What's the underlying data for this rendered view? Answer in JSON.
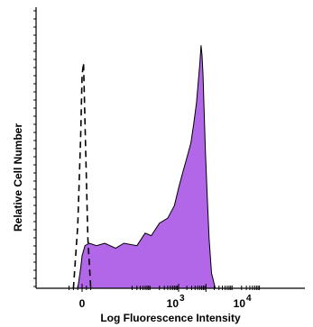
{
  "chart_data": {
    "type": "area",
    "title": "",
    "xlabel": "Log Fluorescence Intensity",
    "ylabel": "Relative Cell Number",
    "x_scale": "biexponential-log",
    "xlim": [
      -1,
      10000000
    ],
    "ylim": [
      0,
      1
    ],
    "x_tick_labels": [
      {
        "value": 0,
        "base": "0",
        "exp": ""
      },
      {
        "value": 1000,
        "base": "10",
        "exp": "3"
      },
      {
        "value": 10000,
        "base": "10",
        "exp": "4"
      }
    ],
    "grid": false,
    "legend": "none",
    "series": [
      {
        "style": "dashed-outline",
        "color": "#000000",
        "x": [
          -0.6,
          -0.3,
          -0.1,
          0,
          0.1,
          0.25,
          0.4,
          0.6
        ],
        "y": [
          0.0,
          0.25,
          0.6,
          0.85,
          0.9,
          0.55,
          0.2,
          0.0
        ]
      },
      {
        "style": "filled",
        "color": "#b266e8",
        "x": [
          -0.3,
          -0.1,
          0,
          0.2,
          0.5,
          1,
          2,
          5,
          10,
          30,
          60,
          100,
          200,
          400,
          700,
          1000,
          1400,
          2000,
          2800,
          3600,
          4500,
          5200,
          6000,
          6600,
          7200,
          7800,
          8500,
          9500,
          11000,
          13000,
          16000,
          22000
        ],
        "y": [
          0.0,
          0.08,
          0.13,
          0.17,
          0.18,
          0.17,
          0.18,
          0.16,
          0.18,
          0.17,
          0.22,
          0.21,
          0.26,
          0.28,
          0.33,
          0.4,
          0.46,
          0.52,
          0.58,
          0.66,
          0.74,
          0.82,
          0.9,
          0.97,
          0.93,
          0.85,
          0.72,
          0.55,
          0.38,
          0.2,
          0.06,
          0.0
        ]
      }
    ]
  }
}
